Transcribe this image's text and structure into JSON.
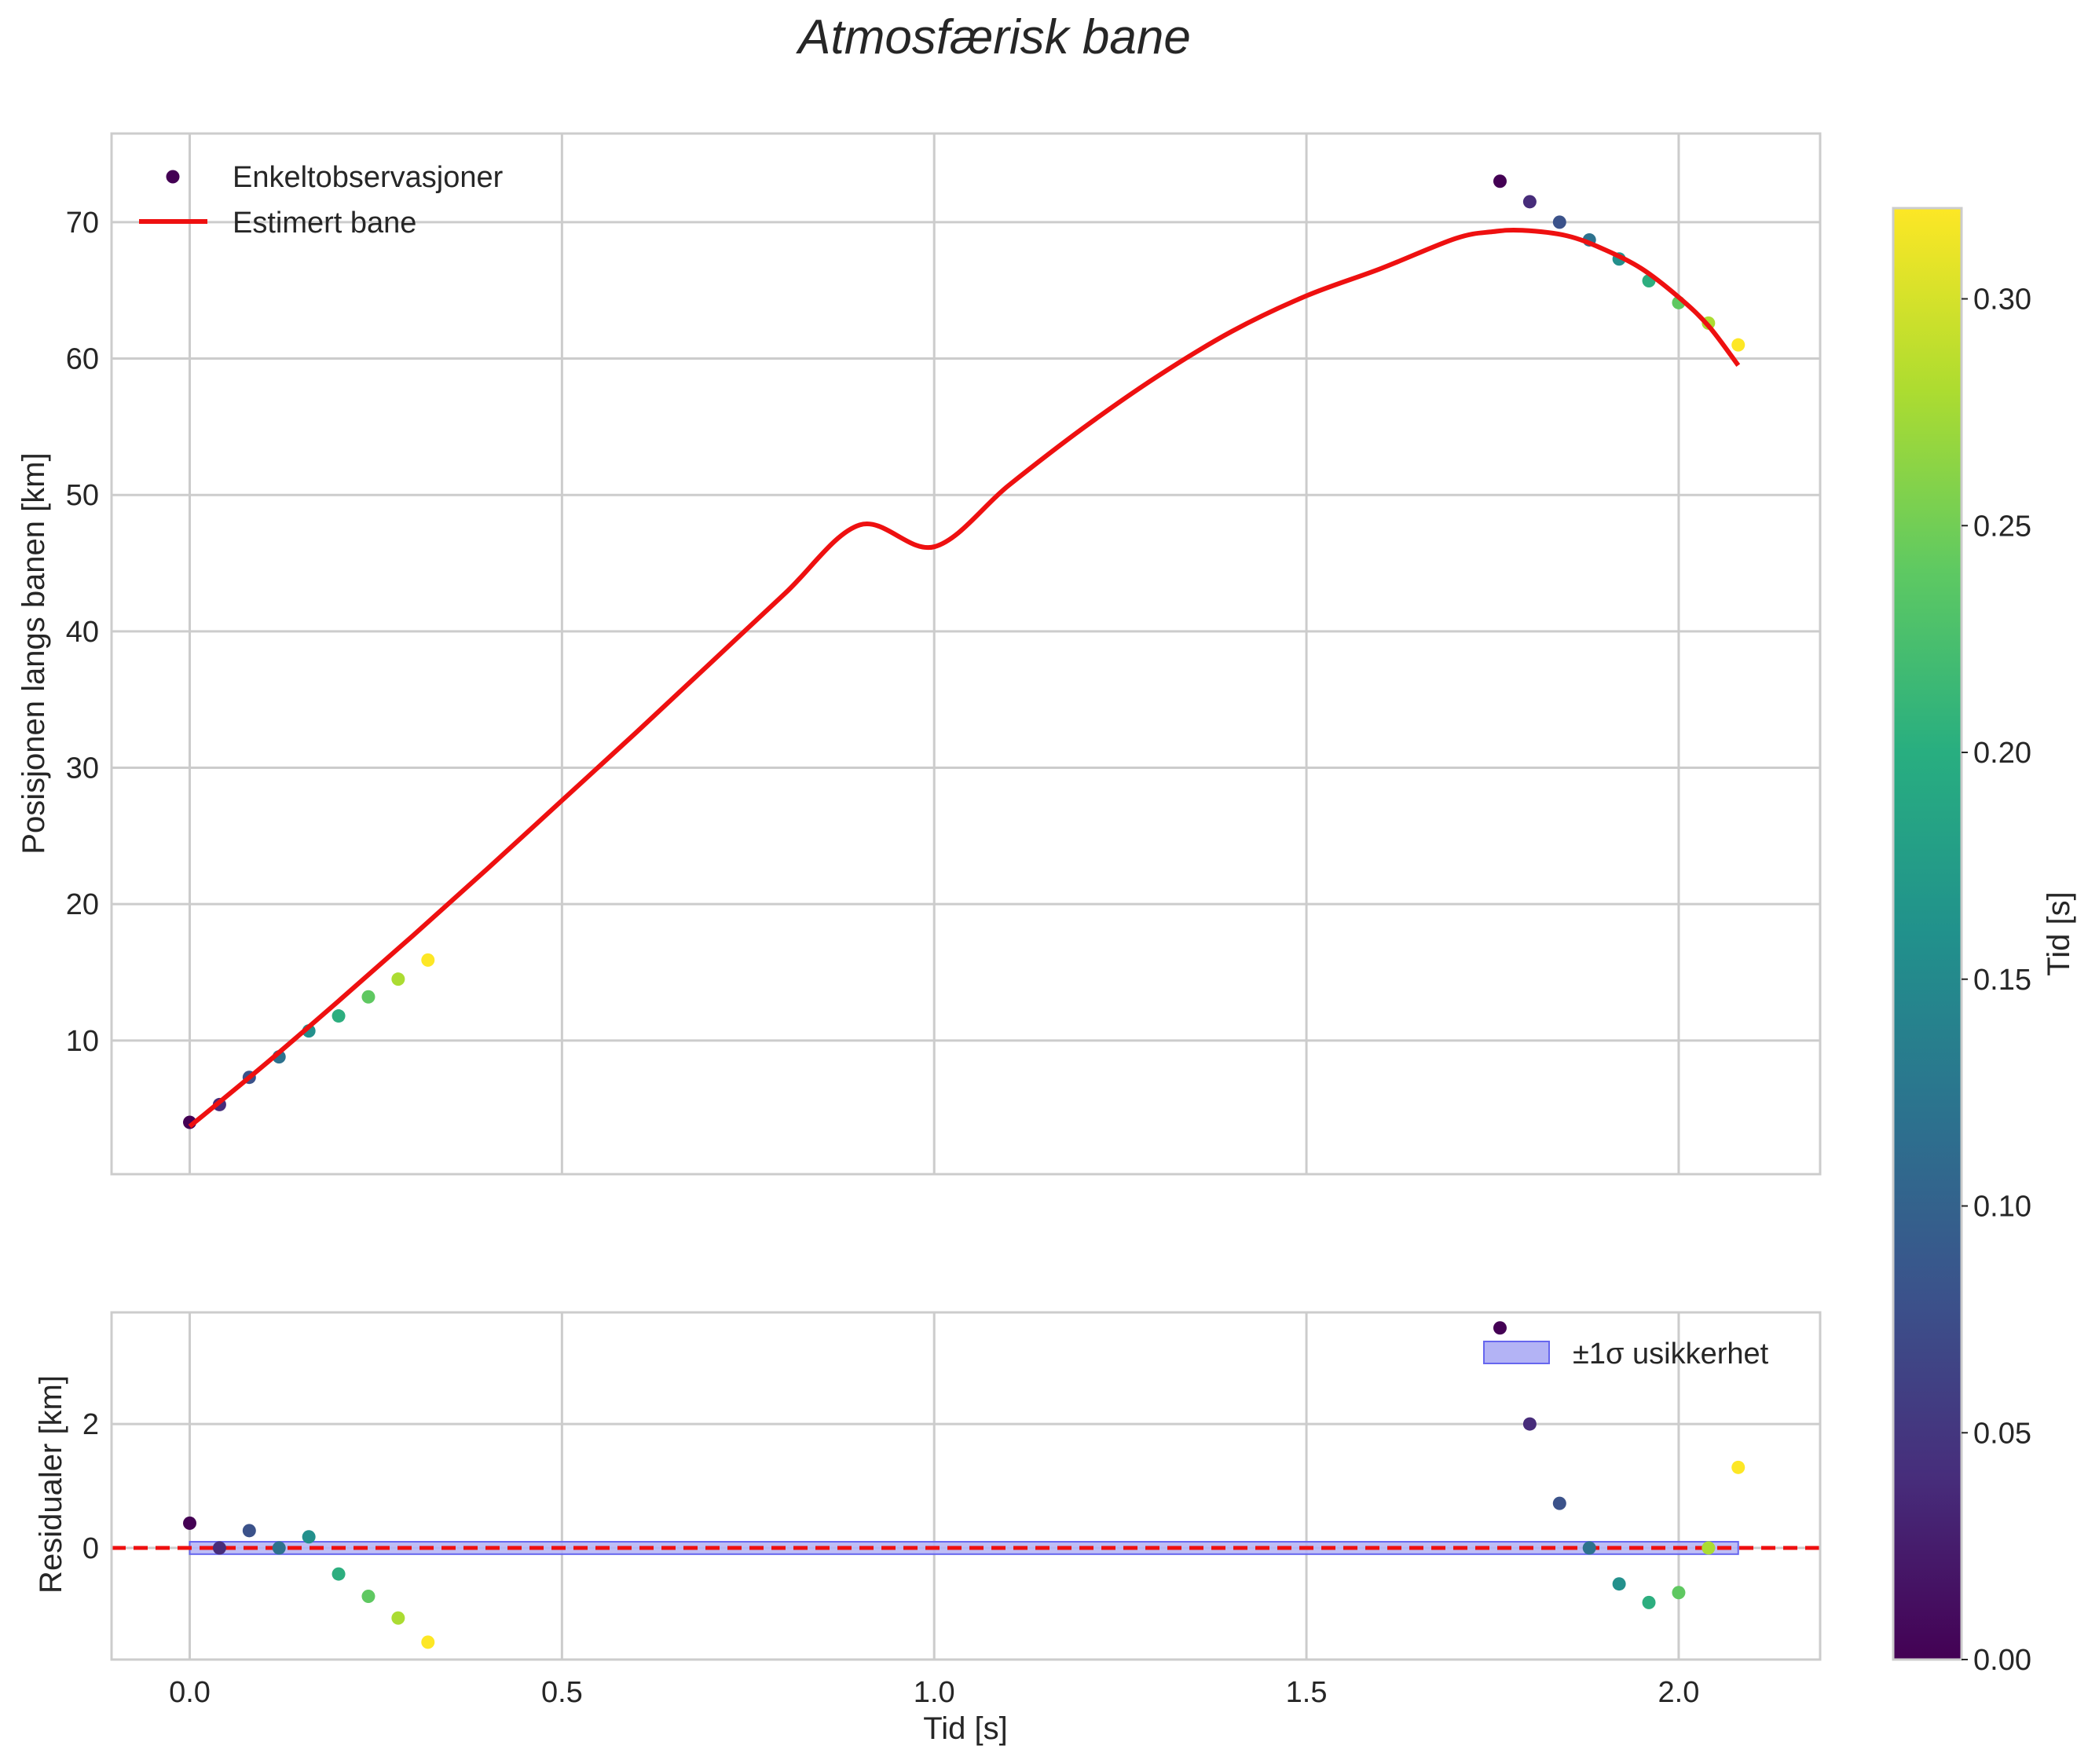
{
  "chart_data": [
    {
      "id": "main",
      "type": "scatter+line",
      "title": "Atmosfærisk bane",
      "xlabel": "",
      "ylabel": "Posisjonen langs banen [km]",
      "xlim": [
        -0.105,
        2.19
      ],
      "ylim": [
        0.2,
        76.5
      ],
      "xticks": [
        0.0,
        0.5,
        1.0,
        1.5,
        2.0
      ],
      "yticks": [
        10,
        20,
        30,
        40,
        50,
        60,
        70
      ],
      "grid": true,
      "legend": {
        "placement": "top-left",
        "entries": [
          {
            "label": "Enkeltobservasjoner",
            "kind": "scatter",
            "color": "#440154"
          },
          {
            "label": "Estimert bane",
            "kind": "line",
            "color": "#ee1010"
          }
        ]
      },
      "observations": {
        "name": "Enkeltobservasjoner",
        "points": [
          {
            "t": 0.0,
            "y": 4.0,
            "c": 0.0
          },
          {
            "t": 0.04,
            "y": 5.3,
            "c": 0.04
          },
          {
            "t": 0.08,
            "y": 7.3,
            "c": 0.08
          },
          {
            "t": 0.12,
            "y": 8.8,
            "c": 0.12
          },
          {
            "t": 0.16,
            "y": 10.7,
            "c": 0.16
          },
          {
            "t": 0.2,
            "y": 11.8,
            "c": 0.2
          },
          {
            "t": 0.24,
            "y": 13.2,
            "c": 0.24
          },
          {
            "t": 0.28,
            "y": 14.5,
            "c": 0.28
          },
          {
            "t": 0.32,
            "y": 15.9,
            "c": 0.32
          },
          {
            "t": 1.76,
            "y": 73.0,
            "c": 0.0
          },
          {
            "t": 1.8,
            "y": 71.5,
            "c": 0.04
          },
          {
            "t": 1.84,
            "y": 70.0,
            "c": 0.08
          },
          {
            "t": 1.88,
            "y": 68.7,
            "c": 0.12
          },
          {
            "t": 1.92,
            "y": 67.3,
            "c": 0.16
          },
          {
            "t": 1.96,
            "y": 65.7,
            "c": 0.2
          },
          {
            "t": 2.0,
            "y": 64.1,
            "c": 0.24
          },
          {
            "t": 2.04,
            "y": 62.6,
            "c": 0.28
          },
          {
            "t": 2.08,
            "y": 61.0,
            "c": 0.32
          }
        ]
      },
      "estimated_path": {
        "name": "Estimert bane",
        "color": "#ee1010",
        "points": [
          [
            0.0,
            3.7
          ],
          [
            0.1,
            8.2
          ],
          [
            0.2,
            12.9
          ],
          [
            0.3,
            17.7
          ],
          [
            0.4,
            22.6
          ],
          [
            0.5,
            27.6
          ],
          [
            0.6,
            32.6
          ],
          [
            0.7,
            37.7
          ],
          [
            0.8,
            42.8
          ],
          [
            0.9,
            47.8
          ],
          [
            1.0,
            46.2
          ],
          [
            1.1,
            50.7
          ],
          [
            1.2,
            54.9
          ],
          [
            1.3,
            58.7
          ],
          [
            1.4,
            62.0
          ],
          [
            1.5,
            64.6
          ],
          [
            1.6,
            66.6
          ],
          [
            1.7,
            68.8
          ],
          [
            1.75,
            69.3
          ],
          [
            1.79,
            69.4
          ],
          [
            1.85,
            69.0
          ],
          [
            1.9,
            68.0
          ],
          [
            1.95,
            66.6
          ],
          [
            2.0,
            64.5
          ],
          [
            2.04,
            62.4
          ],
          [
            2.08,
            59.5
          ]
        ]
      }
    },
    {
      "id": "residuals",
      "type": "scatter",
      "xlabel": "Tid [s]",
      "ylabel": "Residualer [km]",
      "xlim": [
        -0.105,
        2.19
      ],
      "ylim": [
        -1.8,
        3.8
      ],
      "xticks": [
        0.0,
        0.5,
        1.0,
        1.5,
        2.0
      ],
      "xtick_labels": [
        "0.0",
        "0.5",
        "1.0",
        "1.5",
        "2.0"
      ],
      "yticks": [
        0,
        2
      ],
      "grid": true,
      "zero_line": {
        "value": 0,
        "style": "dashed",
        "color": "#ee1010"
      },
      "uncertainty_band": {
        "label": "±1σ usikkerhet",
        "t_range": [
          0.0,
          2.08
        ],
        "sigma": 0.1,
        "color": "#6666ee"
      },
      "legend": {
        "placement": "top-right",
        "entries": [
          {
            "label": "±1σ usikkerhet",
            "kind": "patch",
            "color": "#b3b3f5"
          }
        ]
      },
      "points": [
        {
          "t": 0.0,
          "r": 0.4,
          "c": 0.0
        },
        {
          "t": 0.04,
          "r": 0.0,
          "c": 0.04
        },
        {
          "t": 0.08,
          "r": 0.28,
          "c": 0.08
        },
        {
          "t": 0.12,
          "r": 0.0,
          "c": 0.12
        },
        {
          "t": 0.16,
          "r": 0.18,
          "c": 0.16
        },
        {
          "t": 0.2,
          "r": -0.42,
          "c": 0.2
        },
        {
          "t": 0.24,
          "r": -0.78,
          "c": 0.24
        },
        {
          "t": 0.28,
          "r": -1.13,
          "c": 0.28
        },
        {
          "t": 0.32,
          "r": -1.52,
          "c": 0.32
        },
        {
          "t": 1.76,
          "r": 3.55,
          "c": 0.0
        },
        {
          "t": 1.8,
          "r": 2.0,
          "c": 0.04
        },
        {
          "t": 1.84,
          "r": 0.72,
          "c": 0.08
        },
        {
          "t": 1.88,
          "r": 0.0,
          "c": 0.12
        },
        {
          "t": 1.92,
          "r": -0.58,
          "c": 0.16
        },
        {
          "t": 1.96,
          "r": -0.88,
          "c": 0.2
        },
        {
          "t": 2.0,
          "r": -0.72,
          "c": 0.24
        },
        {
          "t": 2.04,
          "r": 0.0,
          "c": 0.28
        },
        {
          "t": 2.08,
          "r": 1.3,
          "c": 0.32
        }
      ]
    },
    {
      "id": "colorbar",
      "type": "colorbar",
      "label": "Tid [s]",
      "colormap": "viridis",
      "range": [
        0.0,
        0.32
      ],
      "ticks": [
        0.0,
        0.05,
        0.1,
        0.15,
        0.2,
        0.25,
        0.3
      ],
      "tick_labels": [
        "0.00",
        "0.05",
        "0.10",
        "0.15",
        "0.20",
        "0.25",
        "0.30"
      ]
    }
  ]
}
